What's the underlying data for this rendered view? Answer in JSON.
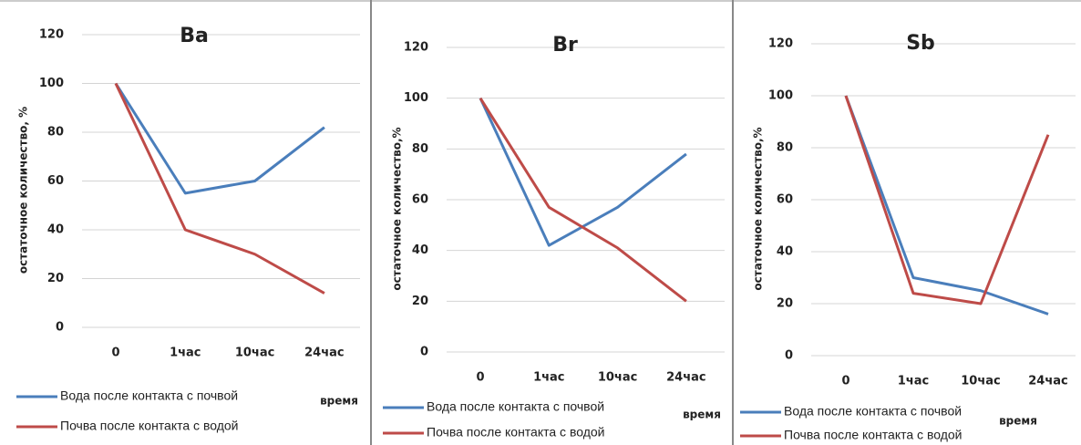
{
  "chart_data": [
    {
      "type": "line",
      "title": "Ba",
      "x_label": "время",
      "y_label": "остаточное количество, %",
      "categories": [
        "0",
        "1час",
        "10час",
        "24час"
      ],
      "series": [
        {
          "name": "Вода после контакта с почвой",
          "color": "#4a7ebb",
          "values": [
            100,
            55,
            60,
            82
          ]
        },
        {
          "name": "Почва после контакта с водой",
          "color": "#be4b48",
          "values": [
            100,
            40,
            30,
            14
          ]
        }
      ],
      "ylim": [
        0,
        120
      ],
      "yticks": [
        0,
        20,
        40,
        60,
        80,
        100,
        120
      ],
      "grid": true,
      "legend": "bottom-left"
    },
    {
      "type": "line",
      "title": "Br",
      "x_label": "время",
      "y_label": "остаточное количество,%",
      "categories": [
        "0",
        "1час",
        "10час",
        "24час"
      ],
      "series": [
        {
          "name": "Вода после контакта с почвой",
          "color": "#4a7ebb",
          "values": [
            100,
            42,
            57,
            78
          ]
        },
        {
          "name": "Почва после контакта с водой",
          "color": "#be4b48",
          "values": [
            100,
            57,
            41,
            20
          ]
        }
      ],
      "ylim": [
        0,
        120
      ],
      "yticks": [
        0,
        20,
        40,
        60,
        80,
        100,
        120
      ],
      "grid": true,
      "legend": "bottom-left"
    },
    {
      "type": "line",
      "title": "Sb",
      "x_label": "время",
      "y_label": "остаточное количество,%",
      "categories": [
        "0",
        "1час",
        "10час",
        "24час"
      ],
      "series": [
        {
          "name": "Вода после контакта с почвой",
          "color": "#4a7ebb",
          "values": [
            100,
            30,
            25,
            16
          ]
        },
        {
          "name": "Почва после контакта с водой",
          "color": "#be4b48",
          "values": [
            100,
            24,
            20,
            85
          ]
        }
      ],
      "ylim": [
        0,
        120
      ],
      "yticks": [
        0,
        20,
        40,
        60,
        80,
        100,
        120
      ],
      "grid": true,
      "legend": "bottom-left"
    }
  ]
}
